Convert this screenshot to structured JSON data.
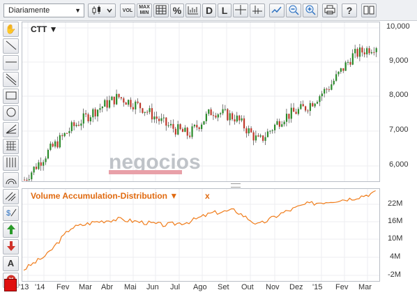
{
  "toolbar": {
    "period": "Diariamente",
    "vol": "VOL",
    "maxmin_top": "MAX",
    "maxmin_bottom": "MIN",
    "pct": "%",
    "d": "D",
    "l": "L",
    "help": "?"
  },
  "price_panel": {
    "ticker": "CTT ▼",
    "watermark": "negocios",
    "yticks": [
      "10,000",
      "9,000",
      "8,000",
      "7,000",
      "6,000"
    ]
  },
  "volume_panel": {
    "title": "Volume Accumulation-Distribution ▼",
    "close": "x",
    "yticks": [
      "22M",
      "16M",
      "10M",
      "4M",
      "-2M"
    ]
  },
  "x_axis": [
    "'13",
    "'14",
    "Fev",
    "Mar",
    "Abr",
    "Mai",
    "Jun",
    "Jul",
    "Ago",
    "Set",
    "Out",
    "Nov",
    "Dez",
    "'15",
    "Fev",
    "Mar"
  ],
  "left_tools": {
    "text_tool": "A"
  },
  "colors": {
    "up_candle": "#2a8a2a",
    "down_candle": "#c0392b",
    "volume_line": "#f07c1a",
    "accent_label": "#e06a10"
  },
  "chart_data": [
    {
      "type": "line",
      "title": "CTT",
      "x": [
        "Dec 2013",
        "Jan 2014",
        "Feb",
        "Mar",
        "Apr",
        "May",
        "Jun",
        "Jul",
        "Aug",
        "Sep",
        "Oct",
        "Nov",
        "Dec",
        "Jan 2015",
        "Feb",
        "Mar"
      ],
      "series": [
        {
          "name": "CTT",
          "values": [
            5600,
            6400,
            7100,
            7600,
            8000,
            7700,
            7200,
            6900,
            7600,
            7400,
            6700,
            7400,
            7700,
            8300,
            9200,
            9500
          ]
        }
      ],
      "ylim": [
        5400,
        10000
      ]
    },
    {
      "type": "line",
      "title": "Volume Accumulation-Distribution",
      "x": [
        "Dec 2013",
        "Jan 2014",
        "Feb",
        "Mar",
        "Apr",
        "May",
        "Jun",
        "Jul",
        "Aug",
        "Sep",
        "Oct",
        "Nov",
        "Dec",
        "Jan 2015",
        "Feb",
        "Mar"
      ],
      "series": [
        {
          "name": "Volume Accumulation-Distribution",
          "values": [
            0,
            5,
            14,
            16,
            17,
            16,
            15,
            16,
            19,
            20,
            15,
            19,
            22,
            23,
            24,
            26
          ]
        }
      ],
      "ylim": [
        -2,
        26
      ]
    }
  ]
}
